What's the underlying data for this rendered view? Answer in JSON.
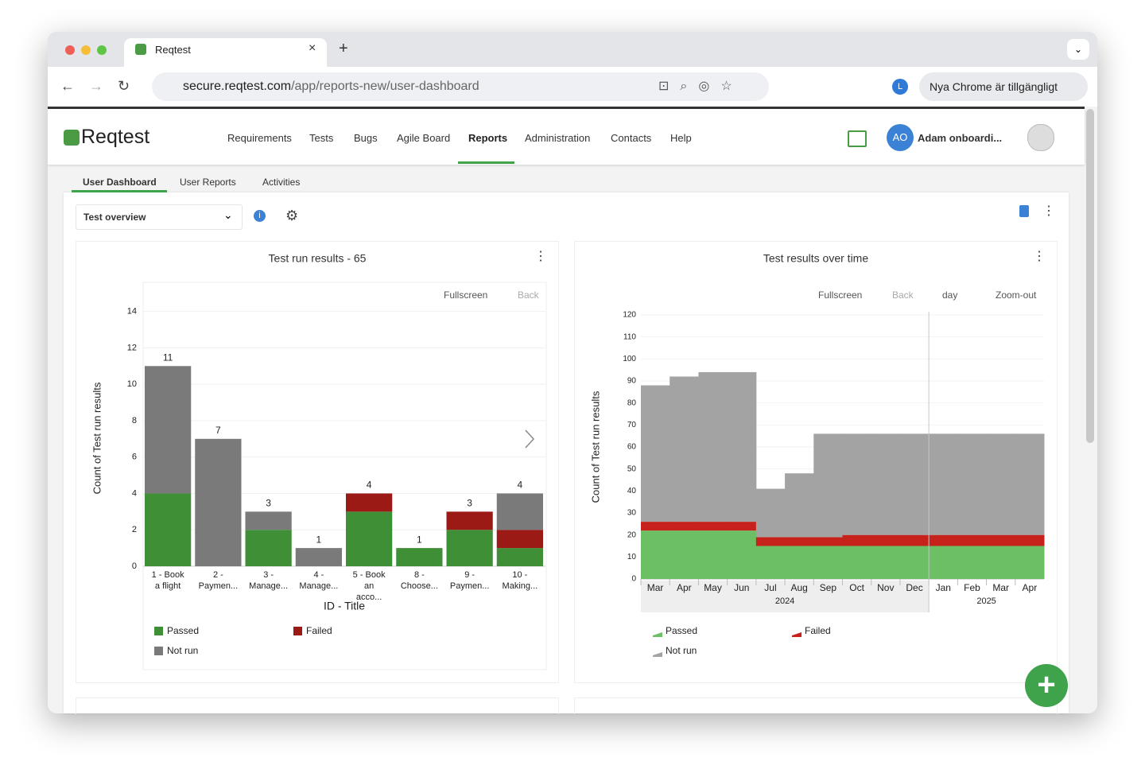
{
  "browser": {
    "tab_title": "Reqtest",
    "url_host": "secure.reqtest.com",
    "url_path": "/app/reports-new/user-dashboard",
    "profile": "L",
    "update": "Nya Chrome är tillgängligt"
  },
  "app": {
    "logo": "Reqtest",
    "nav": [
      "Requirements",
      "Tests",
      "Bugs",
      "Agile Board",
      "Reports",
      "Administration",
      "Contacts",
      "Help"
    ],
    "active_nav": 4,
    "user_initials": "AO",
    "user": "Adam onboardi...",
    "tabs": [
      "User Dashboard",
      "User Reports",
      "Activities"
    ],
    "active_tab": 0,
    "dashboard": "Test overview"
  },
  "chart_data": [
    {
      "type": "stacked_bar",
      "title": "Test run results - 65",
      "toolbar": [
        "Fullscreen",
        "Back"
      ],
      "y_label": "Count of Test run results",
      "x_label": "ID - Title",
      "categories": [
        "1 - Book a flight",
        "2 - Paymen...",
        "3 - Manage...",
        "4 - Manage...",
        "5 - Book an acco...",
        "8 - Choose...",
        "9 - Paymen...",
        "10 - Making..."
      ],
      "series": [
        {
          "name": "Passed",
          "color": "#3f8f36",
          "values": [
            4,
            0,
            2,
            0,
            3,
            1,
            2,
            1
          ]
        },
        {
          "name": "Failed",
          "color": "#9b1a15",
          "values": [
            0,
            0,
            0,
            0,
            1,
            0,
            1,
            1
          ]
        },
        {
          "name": "Not run",
          "color": "#7a7a7a",
          "values": [
            7,
            7,
            1,
            1,
            0,
            0,
            0,
            2
          ]
        }
      ],
      "totals": [
        11,
        7,
        3,
        1,
        4,
        1,
        3,
        4
      ],
      "ylim": [
        0,
        15.6
      ],
      "yticks": [
        0,
        2,
        4,
        6,
        8,
        10,
        12,
        14
      ],
      "grid": true
    },
    {
      "type": "stacked_step_area",
      "title": "Test results over time",
      "toolbar": [
        "Fullscreen",
        "Back",
        "day",
        "Zoom-out"
      ],
      "y_label": "Count of Test run results",
      "categories": [
        "Mar",
        "Apr",
        "May",
        "Jun",
        "Jul",
        "Aug",
        "Sep",
        "Oct",
        "Nov",
        "Dec",
        "Jan",
        "Feb",
        "Mar",
        "Apr"
      ],
      "years": [
        {
          "label": "2024",
          "span": [
            0,
            9
          ]
        },
        {
          "label": "2025",
          "span": [
            10,
            13
          ]
        }
      ],
      "series": [
        {
          "name": "Passed",
          "color": "#6cbf62",
          "values": [
            22,
            22,
            22,
            22,
            15,
            15,
            15,
            15,
            15,
            15,
            15,
            15,
            15,
            15
          ]
        },
        {
          "name": "Failed",
          "color": "#c7211b",
          "values": [
            4,
            4,
            4,
            4,
            4,
            4,
            4,
            5,
            5,
            5,
            5,
            5,
            5,
            5
          ]
        },
        {
          "name": "Not run",
          "color": "#a3a3a3",
          "values": [
            62,
            66,
            68,
            68,
            22,
            29,
            47,
            46,
            46,
            46,
            46,
            46,
            46,
            46
          ]
        }
      ],
      "ylim": [
        0,
        120
      ],
      "yticks": [
        0,
        10,
        20,
        30,
        40,
        50,
        60,
        70,
        80,
        90,
        100,
        110,
        120
      ],
      "grid": true
    }
  ]
}
